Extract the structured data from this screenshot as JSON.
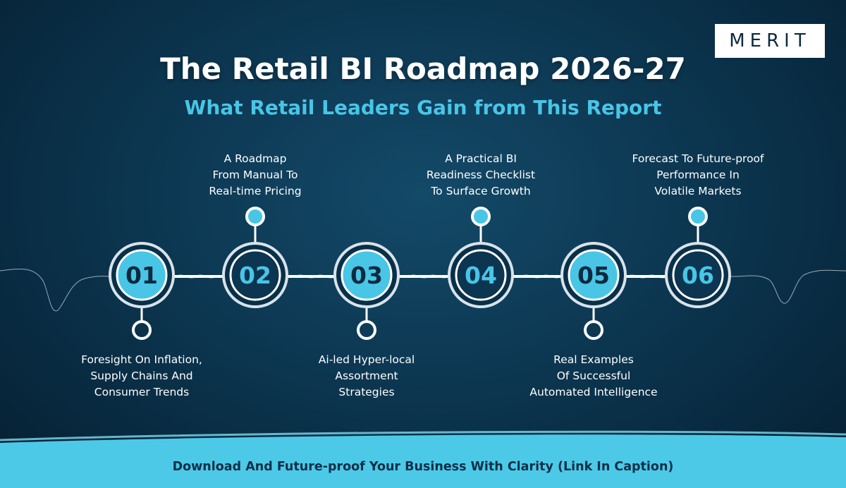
{
  "brand": {
    "logo_text": "MERIT"
  },
  "header": {
    "title": "The Retail BI Roadmap 2026-27",
    "subtitle": "What Retail Leaders Gain from This Report"
  },
  "steps": [
    {
      "number": "01",
      "lines": [
        "Foresight On Inflation,",
        "Supply Chains And",
        "Consumer Trends"
      ],
      "position": "below",
      "style": "filled"
    },
    {
      "number": "02",
      "lines": [
        "A Roadmap",
        "From Manual To",
        "Real-time Pricing"
      ],
      "position": "above",
      "style": "dark"
    },
    {
      "number": "03",
      "lines": [
        "Ai-led Hyper-local",
        "Assortment",
        "Strategies"
      ],
      "position": "below",
      "style": "filled"
    },
    {
      "number": "04",
      "lines": [
        "A Practical BI",
        "Readiness Checklist",
        "To Surface Growth"
      ],
      "position": "above",
      "style": "dark"
    },
    {
      "number": "05",
      "lines": [
        "Real Examples",
        "Of Successful",
        "Automated Intelligence"
      ],
      "position": "below",
      "style": "filled"
    },
    {
      "number": "06",
      "lines": [
        "Forecast To Future-proof",
        "Performance In",
        "Volatile Markets"
      ],
      "position": "above",
      "style": "dark"
    }
  ],
  "footer": {
    "text": "Download And Future-proof Your Business With Clarity (Link In Caption)"
  },
  "colors": {
    "accent": "#49c5e6",
    "ring": "#d8e3ea",
    "dark_fill": "#0b3550",
    "background": "#0d3954",
    "footer_band": "#4dc9e8"
  }
}
